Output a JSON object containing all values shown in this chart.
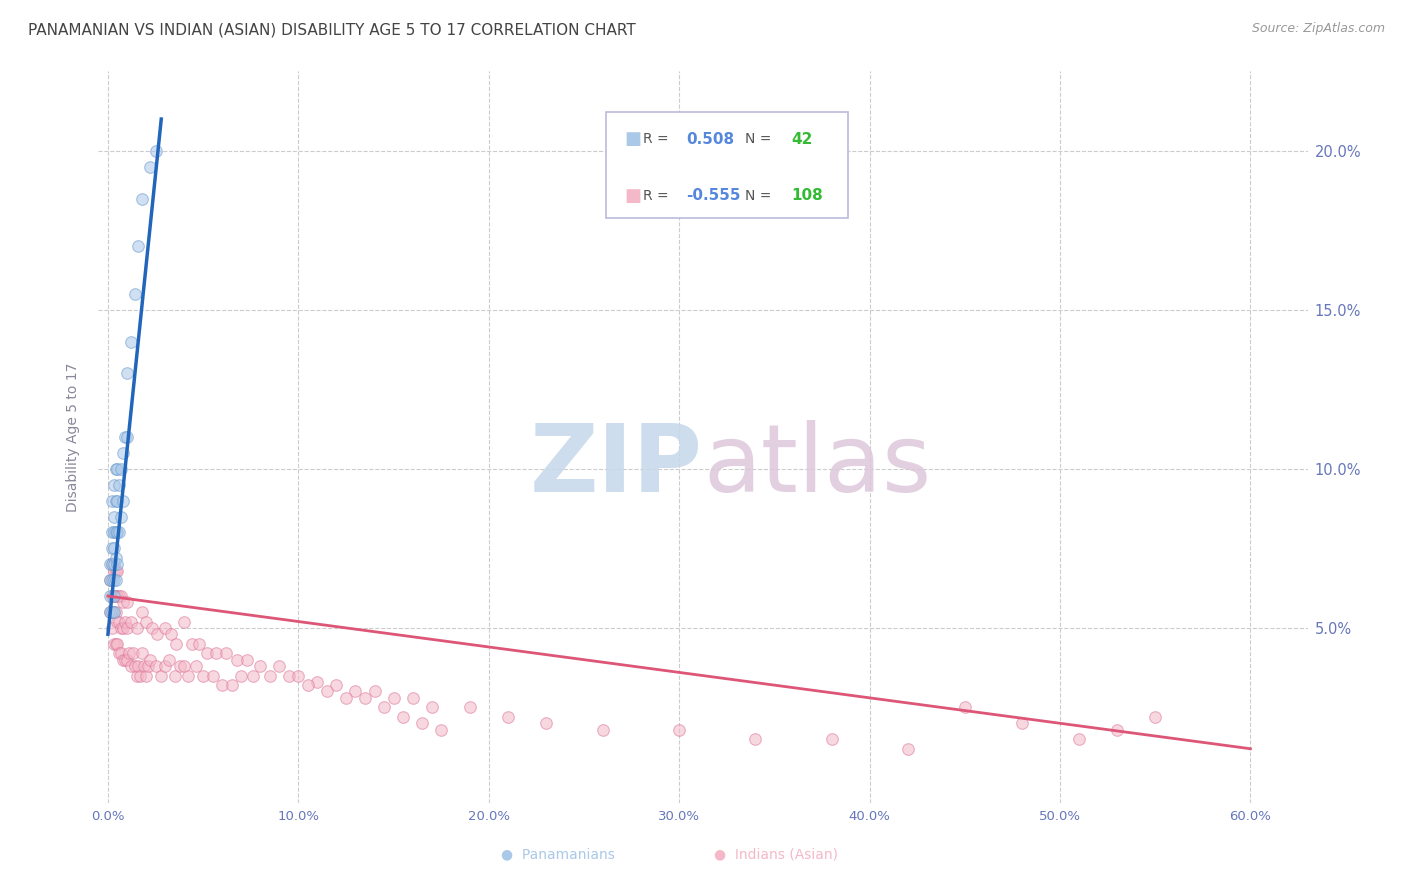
{
  "title": "PANAMANIAN VS INDIAN (ASIAN) DISABILITY AGE 5 TO 17 CORRELATION CHART",
  "source": "Source: ZipAtlas.com",
  "ylabel": "Disability Age 5 to 17",
  "xlabel_ticks": [
    "0.0%",
    "10.0%",
    "20.0%",
    "30.0%",
    "40.0%",
    "50.0%",
    "60.0%"
  ],
  "xlabel_vals": [
    0.0,
    0.1,
    0.2,
    0.3,
    0.4,
    0.5,
    0.6
  ],
  "ylabel_ticks": [
    "5.0%",
    "10.0%",
    "15.0%",
    "20.0%"
  ],
  "ylabel_vals": [
    0.05,
    0.1,
    0.15,
    0.2
  ],
  "ylim": [
    -0.005,
    0.225
  ],
  "xlim": [
    -0.005,
    0.63
  ],
  "blue_color": "#aac8e8",
  "blue_edge": "#6699cc",
  "blue_line_color": "#2266bb",
  "pink_color": "#f4b8c8",
  "pink_edge": "#dd7799",
  "pink_line_color": "#dd5577",
  "watermark_zip_color": "#c5d8ea",
  "watermark_atlas_color": "#ddc8dc",
  "background_color": "#ffffff",
  "title_color": "#444444",
  "axis_label_color": "#6677bb",
  "tick_color": "#6677bb",
  "legend_R_color": "#5588dd",
  "legend_N_color": "#33bb33",
  "grid_color": "#cccccc",
  "marker_size": 70,
  "marker_alpha": 0.55,
  "blue_x": [
    0.001,
    0.001,
    0.001,
    0.001,
    0.002,
    0.002,
    0.002,
    0.002,
    0.002,
    0.002,
    0.003,
    0.003,
    0.003,
    0.003,
    0.003,
    0.003,
    0.003,
    0.003,
    0.004,
    0.004,
    0.004,
    0.004,
    0.004,
    0.005,
    0.005,
    0.005,
    0.005,
    0.006,
    0.006,
    0.007,
    0.007,
    0.008,
    0.008,
    0.009,
    0.01,
    0.01,
    0.012,
    0.014,
    0.016,
    0.018,
    0.022,
    0.025
  ],
  "blue_y": [
    0.055,
    0.06,
    0.065,
    0.07,
    0.055,
    0.065,
    0.07,
    0.075,
    0.08,
    0.09,
    0.055,
    0.06,
    0.065,
    0.07,
    0.075,
    0.08,
    0.085,
    0.095,
    0.065,
    0.072,
    0.08,
    0.09,
    0.1,
    0.07,
    0.08,
    0.09,
    0.1,
    0.08,
    0.095,
    0.085,
    0.1,
    0.09,
    0.105,
    0.11,
    0.11,
    0.13,
    0.14,
    0.155,
    0.17,
    0.185,
    0.195,
    0.2
  ],
  "pink_x": [
    0.001,
    0.001,
    0.002,
    0.002,
    0.002,
    0.003,
    0.003,
    0.003,
    0.003,
    0.004,
    0.004,
    0.004,
    0.004,
    0.005,
    0.005,
    0.005,
    0.005,
    0.006,
    0.006,
    0.006,
    0.007,
    0.007,
    0.007,
    0.008,
    0.008,
    0.008,
    0.009,
    0.009,
    0.01,
    0.01,
    0.01,
    0.011,
    0.012,
    0.012,
    0.013,
    0.014,
    0.015,
    0.015,
    0.016,
    0.017,
    0.018,
    0.018,
    0.019,
    0.02,
    0.02,
    0.021,
    0.022,
    0.023,
    0.025,
    0.026,
    0.028,
    0.03,
    0.03,
    0.032,
    0.033,
    0.035,
    0.036,
    0.038,
    0.04,
    0.04,
    0.042,
    0.044,
    0.046,
    0.048,
    0.05,
    0.052,
    0.055,
    0.057,
    0.06,
    0.062,
    0.065,
    0.068,
    0.07,
    0.073,
    0.076,
    0.08,
    0.085,
    0.09,
    0.095,
    0.1,
    0.11,
    0.12,
    0.13,
    0.14,
    0.15,
    0.16,
    0.17,
    0.19,
    0.21,
    0.23,
    0.26,
    0.3,
    0.34,
    0.38,
    0.42,
    0.45,
    0.48,
    0.51,
    0.53,
    0.55,
    0.105,
    0.115,
    0.125,
    0.135,
    0.145,
    0.155,
    0.165,
    0.175
  ],
  "pink_y": [
    0.055,
    0.065,
    0.05,
    0.06,
    0.07,
    0.045,
    0.055,
    0.06,
    0.068,
    0.045,
    0.055,
    0.06,
    0.068,
    0.045,
    0.052,
    0.06,
    0.068,
    0.042,
    0.052,
    0.06,
    0.042,
    0.05,
    0.06,
    0.04,
    0.05,
    0.058,
    0.04,
    0.052,
    0.04,
    0.05,
    0.058,
    0.042,
    0.038,
    0.052,
    0.042,
    0.038,
    0.035,
    0.05,
    0.038,
    0.035,
    0.042,
    0.055,
    0.038,
    0.035,
    0.052,
    0.038,
    0.04,
    0.05,
    0.038,
    0.048,
    0.035,
    0.038,
    0.05,
    0.04,
    0.048,
    0.035,
    0.045,
    0.038,
    0.038,
    0.052,
    0.035,
    0.045,
    0.038,
    0.045,
    0.035,
    0.042,
    0.035,
    0.042,
    0.032,
    0.042,
    0.032,
    0.04,
    0.035,
    0.04,
    0.035,
    0.038,
    0.035,
    0.038,
    0.035,
    0.035,
    0.033,
    0.032,
    0.03,
    0.03,
    0.028,
    0.028,
    0.025,
    0.025,
    0.022,
    0.02,
    0.018,
    0.018,
    0.015,
    0.015,
    0.012,
    0.025,
    0.02,
    0.015,
    0.018,
    0.022,
    0.032,
    0.03,
    0.028,
    0.028,
    0.025,
    0.022,
    0.02,
    0.018
  ],
  "blue_trend_x": [
    0.0,
    0.028
  ],
  "blue_trend_y_start": 0.048,
  "blue_trend_y_end": 0.21,
  "pink_trend_x": [
    0.0,
    0.6
  ],
  "pink_trend_y_start": 0.06,
  "pink_trend_y_end": 0.012,
  "title_fontsize": 11,
  "source_fontsize": 9,
  "axis_fontsize": 10,
  "tick_fontsize": 9.5
}
